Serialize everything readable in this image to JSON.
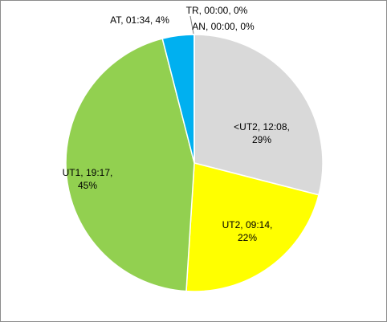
{
  "chart_data": {
    "type": "pie",
    "categories": [
      "<UT2",
      "UT2",
      "UT1",
      "AT",
      "TR",
      "AN"
    ],
    "labels": [
      "<UT2, 12:08, 29%",
      "UT2, 09:14, 22%",
      "UT1, 19:17, 45%",
      "AT, 01:34, 4%",
      "TR, 00:00, 0%",
      "AN, 00:00, 0%"
    ],
    "values": [
      29,
      22,
      45,
      4,
      0,
      0
    ],
    "colors": [
      "#d9d9d9",
      "#ffff00",
      "#92d050",
      "#00b0f0",
      "#a5a5a5",
      "#4472c4"
    ]
  }
}
